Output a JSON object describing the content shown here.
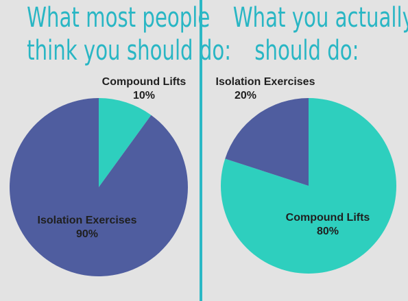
{
  "left_title": {
    "line1": "What most people",
    "line2": "think you should do:"
  },
  "right_title": {
    "line1": "What you actually",
    "line2": "should do:"
  },
  "chart_data": [
    {
      "type": "pie",
      "title": "What most people think you should do:",
      "slices": [
        {
          "label": "Compound Lifts",
          "value": 10,
          "display": "10%",
          "color": "#2ecfbe"
        },
        {
          "label": "Isolation Exercises",
          "value": 90,
          "display": "90%",
          "color": "#4f5d9f"
        }
      ]
    },
    {
      "type": "pie",
      "title": "What you actually should do:",
      "slices": [
        {
          "label": "Compound Lifts",
          "value": 80,
          "display": "80%",
          "color": "#2ecfbe"
        },
        {
          "label": "Isolation Exercises",
          "value": 20,
          "display": "20%",
          "color": "#4f5d9f"
        }
      ]
    }
  ],
  "colors": {
    "background": "#e3e3e3",
    "accent": "#29b6c4",
    "divider": "#2bb8c5"
  }
}
